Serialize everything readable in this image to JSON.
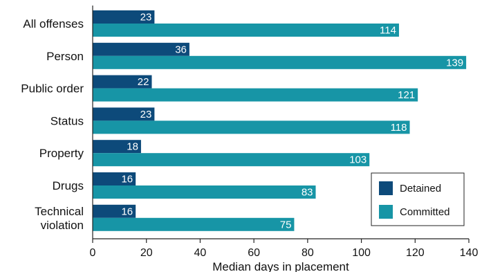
{
  "chart_data": {
    "type": "bar",
    "orientation": "horizontal",
    "categories": [
      [
        "All offenses"
      ],
      [
        "Person"
      ],
      [
        "Public order"
      ],
      [
        "Status"
      ],
      [
        "Property"
      ],
      [
        "Drugs"
      ],
      [
        "Technical",
        "violation"
      ]
    ],
    "series": [
      {
        "name": "Detained",
        "color": "#0d4a7a",
        "values": [
          23,
          36,
          22,
          23,
          18,
          16,
          16
        ]
      },
      {
        "name": "Committed",
        "color": "#1795a6",
        "values": [
          114,
          139,
          121,
          118,
          103,
          83,
          75
        ]
      }
    ],
    "xlabel": "Median days in placement",
    "xlim": [
      0,
      140
    ],
    "xticks": [
      0,
      20,
      40,
      60,
      80,
      100,
      120,
      140
    ],
    "grid": false,
    "legend": "bottom-right"
  }
}
